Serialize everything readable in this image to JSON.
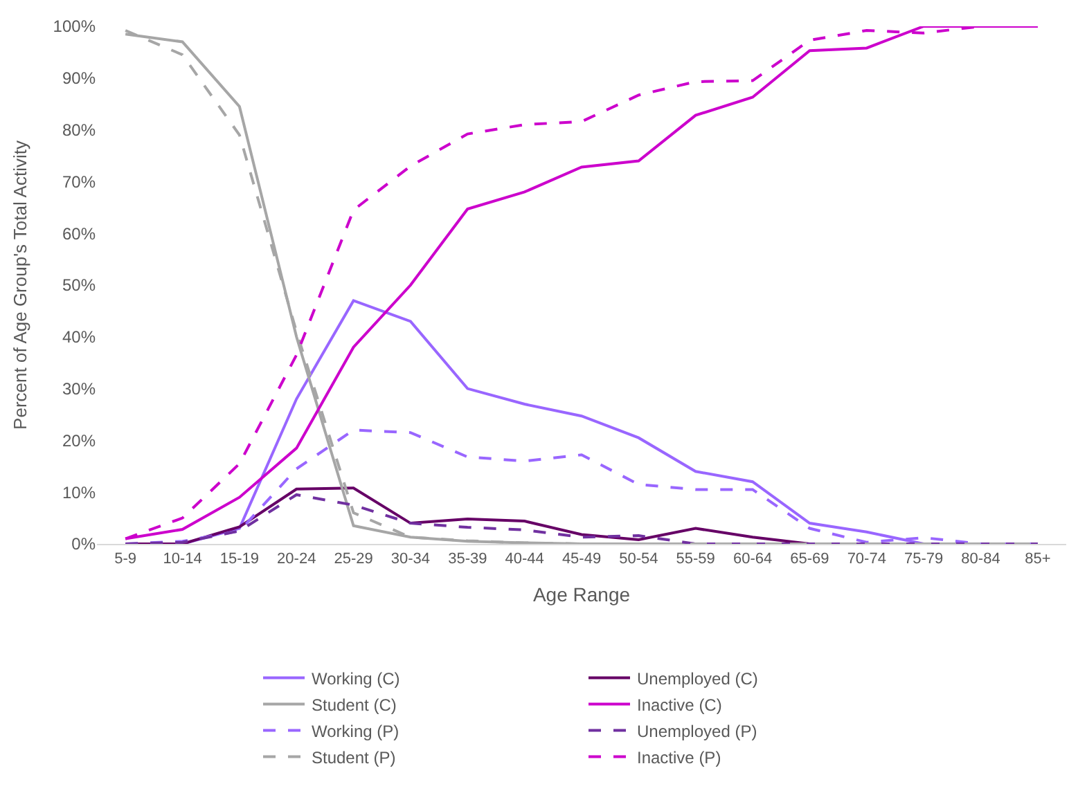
{
  "chart_data": {
    "type": "line",
    "xlabel": "Age Range",
    "ylabel": "Percent of Age Group's Total Activity",
    "categories": [
      "5-9",
      "10-14",
      "15-19",
      "20-24",
      "25-29",
      "30-34",
      "35-39",
      "40-44",
      "45-49",
      "50-54",
      "55-59",
      "60-64",
      "65-69",
      "70-74",
      "75-79",
      "80-84",
      "85+"
    ],
    "ylim": [
      0,
      100
    ],
    "yticks": [
      {
        "value": 0,
        "label": "0%"
      },
      {
        "value": 10,
        "label": "10%"
      },
      {
        "value": 20,
        "label": "20%"
      },
      {
        "value": 30,
        "label": "30%"
      },
      {
        "value": 40,
        "label": "40%"
      },
      {
        "value": 50,
        "label": "50%"
      },
      {
        "value": 60,
        "label": "60%"
      },
      {
        "value": 70,
        "label": "70%"
      },
      {
        "value": 80,
        "label": "80%"
      },
      {
        "value": 90,
        "label": "90%"
      },
      {
        "value": 100,
        "label": "100%"
      }
    ],
    "grid": false,
    "legend": "bottom",
    "marker": "none",
    "series": [
      {
        "name": "Working (C)",
        "color": "#9966ff",
        "line_style": "solid",
        "values": [
          0,
          0,
          3,
          28,
          47,
          43,
          30,
          27,
          24.7,
          20.5,
          14,
          12,
          4,
          2.3,
          0,
          0,
          0
        ]
      },
      {
        "name": "Unemployed (C)",
        "color": "#660066",
        "line_style": "solid",
        "values": [
          0,
          0,
          3.3,
          10.6,
          10.8,
          4,
          4.8,
          4.4,
          1.8,
          0.8,
          3,
          1.3,
          0,
          0,
          0,
          0,
          0
        ]
      },
      {
        "name": "Student (C)",
        "color": "#a6a6a6",
        "line_style": "solid",
        "values": [
          98.5,
          97,
          84.5,
          40,
          3.5,
          1.3,
          0.5,
          0.2,
          0,
          0,
          0,
          0,
          0,
          0,
          0,
          0,
          0
        ]
      },
      {
        "name": "Inactive (C)",
        "color": "#cc00cc",
        "line_style": "solid",
        "values": [
          1,
          2.8,
          9,
          18.5,
          38,
          50,
          64.7,
          68,
          72.8,
          74,
          82.8,
          86.3,
          95.3,
          95.8,
          100,
          100,
          100
        ]
      },
      {
        "name": "Working (P)",
        "color": "#9966ff",
        "line_style": "dashed",
        "values": [
          0,
          0.5,
          2.5,
          14.5,
          22,
          21.5,
          16.8,
          16,
          17.2,
          11.5,
          10.5,
          10.5,
          3,
          0.3,
          1.2,
          0,
          0
        ]
      },
      {
        "name": "Unemployed (P)",
        "color": "#7030a0",
        "line_style": "dashed",
        "values": [
          0,
          0.3,
          2.5,
          9.5,
          7.5,
          4,
          3.2,
          2.7,
          1.3,
          1.6,
          0,
          0,
          0,
          0,
          0,
          0,
          0
        ]
      },
      {
        "name": "Student (P)",
        "color": "#a6a6a6",
        "line_style": "dashed",
        "values": [
          99.2,
          94.5,
          79,
          41,
          6,
          1.3,
          0.6,
          0.2,
          0,
          0,
          0,
          0,
          0,
          0,
          0,
          0,
          0
        ]
      },
      {
        "name": "Inactive (P)",
        "color": "#cc00cc",
        "line_style": "dashed",
        "values": [
          1,
          5,
          15.5,
          36.5,
          64.5,
          73,
          79.2,
          81,
          81.6,
          86.7,
          89.3,
          89.5,
          97.3,
          99.2,
          98.7,
          100,
          100
        ]
      }
    ]
  }
}
